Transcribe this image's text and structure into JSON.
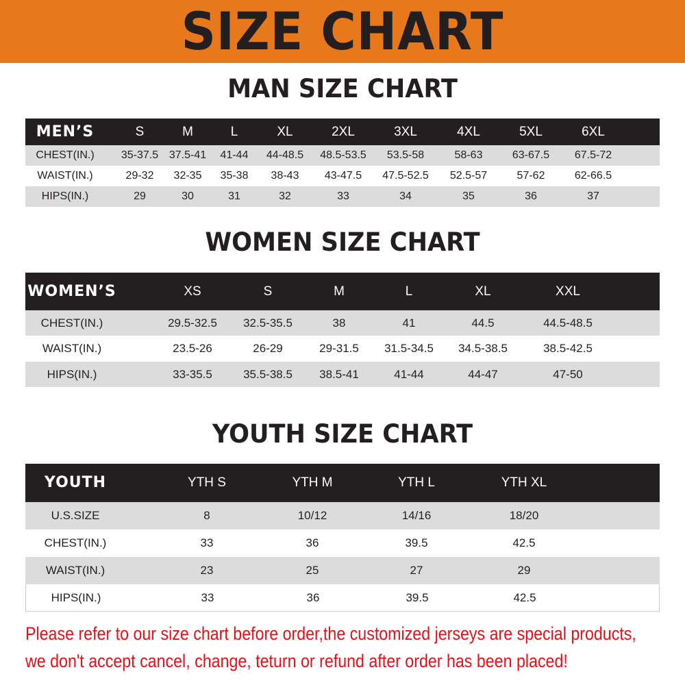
{
  "title": "SIZE CHART",
  "colors": {
    "banner": "#e8781c",
    "header_row": "#231f20",
    "alt_row": "#dcdcdc",
    "note": "#e2121c"
  },
  "men": {
    "title": "MAN SIZE CHART",
    "header": [
      "MEN’S",
      "S",
      "M",
      "L",
      "XL",
      "2XL",
      "3XL",
      "4XL",
      "5XL",
      "6XL"
    ],
    "rows": [
      [
        "CHEST(IN.)",
        "35-37.5",
        "37.5-41",
        "41-44",
        "44-48.5",
        "48.5-53.5",
        "53.5-58",
        "58-63",
        "63-67.5",
        "67.5-72"
      ],
      [
        "WAIST(IN.)",
        "29-32",
        "32-35",
        "35-38",
        "38-43",
        "43-47.5",
        "47.5-52.5",
        "52.5-57",
        "57-62",
        "62-66.5"
      ],
      [
        "HIPS(IN.)",
        "29",
        "30",
        "31",
        "32",
        "33",
        "34",
        "35",
        "36",
        "37"
      ]
    ]
  },
  "women": {
    "title": "WOMEN SIZE CHART",
    "header": [
      "WOMEN’S",
      "XS",
      "S",
      "M",
      "L",
      "XL",
      "XXL"
    ],
    "rows": [
      [
        "CHEST(IN.)",
        "29.5-32.5",
        "32.5-35.5",
        "38",
        "41",
        "44.5",
        "44.5-48.5"
      ],
      [
        "WAIST(IN.)",
        "23.5-26",
        "26-29",
        "29-31.5",
        "31.5-34.5",
        "34.5-38.5",
        "38.5-42.5"
      ],
      [
        "HIPS(IN.)",
        "33-35.5",
        "35.5-38.5",
        "38.5-41",
        "41-44",
        "44-47",
        "47-50"
      ]
    ]
  },
  "youth": {
    "title": "YOUTH SIZE CHART",
    "header": [
      "YOUTH",
      "YTH S",
      "YTH M",
      "YTH L",
      "YTH XL"
    ],
    "rows": [
      [
        "U.S.SIZE",
        "8",
        "10/12",
        "14/16",
        "18/20"
      ],
      [
        "CHEST(IN.)",
        "33",
        "36",
        "39.5",
        "42.5"
      ],
      [
        "WAIST(IN.)",
        "23",
        "25",
        "27",
        "29"
      ],
      [
        "HIPS(IN.)",
        "33",
        "36",
        "39.5",
        "42.5"
      ]
    ]
  },
  "notice": {
    "line1": "Please refer to our size chart before order,the customized jerseys are special products,",
    "line2": "we don't accept cancel, change, teturn or refund after order has been placed!"
  }
}
